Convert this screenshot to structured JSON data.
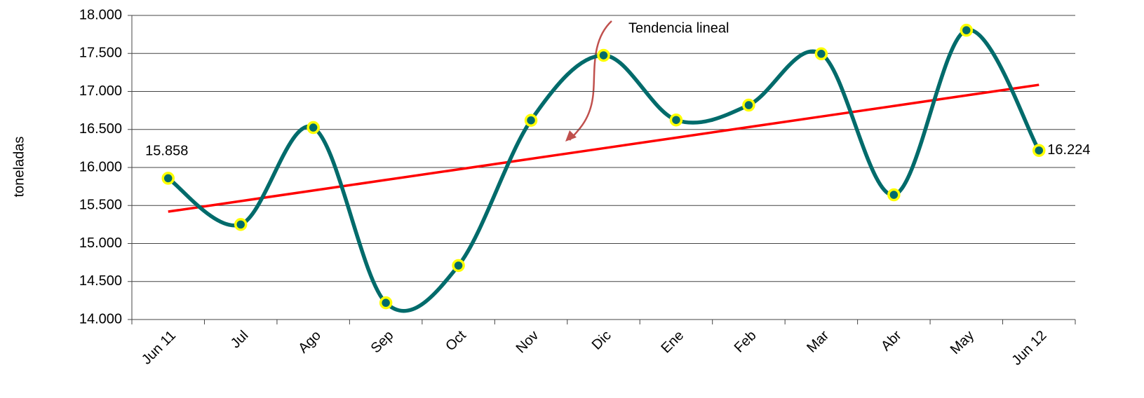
{
  "chart_data": {
    "type": "line",
    "y_label": "toneladas",
    "categories": [
      "Jun 11",
      "Jul",
      "Ago",
      "Sep",
      "Oct",
      "Nov",
      "Dic",
      "Ene",
      "Feb",
      "Mar",
      "Abr",
      "May",
      "Jun 12"
    ],
    "series": [
      {
        "name": null,
        "color": "#006b6b",
        "marker_fill": "#006b6b",
        "marker_edge": "#ffff00",
        "values": [
          15858,
          15250,
          16525,
          14220,
          14710,
          16620,
          17475,
          16625,
          16820,
          17495,
          15640,
          17805,
          16224
        ],
        "value_labels": [
          "15.858",
          null,
          null,
          null,
          null,
          null,
          null,
          null,
          null,
          null,
          null,
          null,
          "16.224"
        ]
      },
      {
        "name": "Tendencia lineal",
        "color": "#ff0000",
        "values": [
          15419,
          15558,
          15697,
          15836,
          15975,
          16114,
          16253,
          16392,
          16531,
          16670,
          16809,
          16948,
          17087
        ]
      }
    ],
    "ylim": [
      14000,
      18000
    ],
    "yticks": [
      {
        "value": 14000,
        "label": "14.000"
      },
      {
        "value": 14500,
        "label": "14.500"
      },
      {
        "value": 15000,
        "label": "15.000"
      },
      {
        "value": 15500,
        "label": "15.500"
      },
      {
        "value": 16000,
        "label": "16.000"
      },
      {
        "value": 16500,
        "label": "16.500"
      },
      {
        "value": 17000,
        "label": "17.000"
      },
      {
        "value": 17500,
        "label": "17.500"
      },
      {
        "value": 18000,
        "label": "18.000"
      }
    ],
    "grid": true
  }
}
